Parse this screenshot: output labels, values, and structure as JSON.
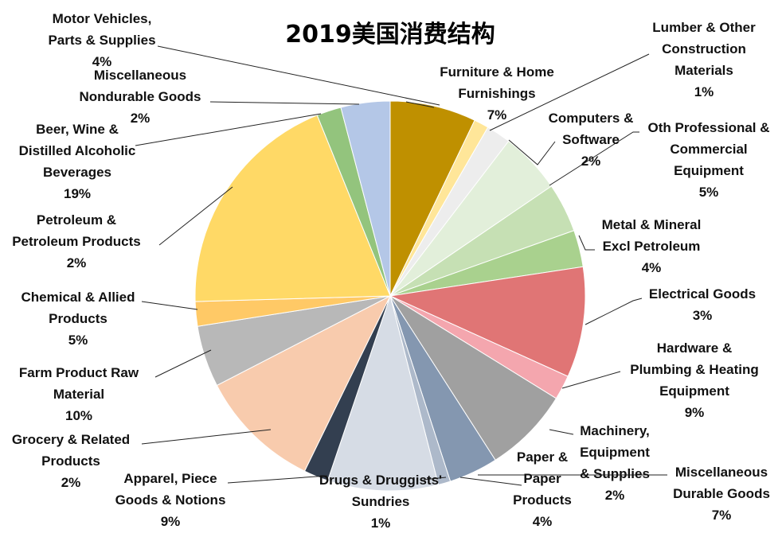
{
  "chart_data": {
    "type": "pie",
    "title": "2019美国消费结构",
    "start_angle_deg": 0,
    "direction": "clockwise",
    "slices": [
      {
        "lines": [
          "Furniture & Home",
          "Furnishings"
        ],
        "value": 7,
        "display": "7%",
        "color": "#BF9000"
      },
      {
        "lines": [
          "Lumber & Other",
          "Construction",
          "Materials"
        ],
        "value": 1.2,
        "display": "1%",
        "color": "#FFE699"
      },
      {
        "lines": [
          "Computers &",
          "Software"
        ],
        "value": 2,
        "display": "2%",
        "color": "#EDEDED"
      },
      {
        "lines": [
          "Oth Professional &",
          "Commercial",
          "Equipment"
        ],
        "value": 5,
        "display": "5%",
        "color": "#E2EFDA"
      },
      {
        "lines": [
          "Metal & Mineral",
          "Excl Petroleum"
        ],
        "value": 4,
        "display": "4%",
        "color": "#C6E0B4"
      },
      {
        "lines": [
          "Electrical Goods"
        ],
        "value": 3,
        "display": "3%",
        "color": "#A9D18E"
      },
      {
        "lines": [
          "Hardware &",
          "Plumbing & Heating",
          "Equipment"
        ],
        "value": 9,
        "display": "9%",
        "color": "#E07575"
      },
      {
        "lines": [
          "Machinery,",
          "Equipment",
          "& Supplies"
        ],
        "value": 2,
        "display": "2%",
        "color": "#F4A6AE"
      },
      {
        "lines": [
          "Miscellaneous",
          "Durable Goods"
        ],
        "value": 7,
        "display": "7%",
        "color": "#A0A0A0"
      },
      {
        "lines": [
          "Paper &",
          "Paper",
          "Products"
        ],
        "value": 4,
        "display": "4%",
        "color": "#8497B0"
      },
      {
        "lines": [
          "Drugs & Druggists'",
          "Sundries"
        ],
        "value": 1,
        "display": "1%",
        "color": "#ADB9CA"
      },
      {
        "lines": [
          "Apparel, Piece",
          "Goods & Notions"
        ],
        "value": 9,
        "display": "9%",
        "color": "#D6DCE5"
      },
      {
        "lines": [
          "Grocery & Related",
          "Products"
        ],
        "value": 2,
        "display": "2%",
        "color": "#333F50"
      },
      {
        "lines": [
          "Farm Product Raw",
          "Material"
        ],
        "value": 10,
        "display": "10%",
        "color": "#F8CBAD"
      },
      {
        "lines": [
          "Chemical & Allied",
          "Products"
        ],
        "value": 5,
        "display": "5%",
        "color": "#B8B8B8"
      },
      {
        "lines": [
          "Petroleum &",
          "Petroleum Products"
        ],
        "value": 2,
        "display": "2%",
        "color": "#FFC966"
      },
      {
        "lines": [
          "Beer, Wine &",
          "Distilled Alcoholic",
          "Beverages"
        ],
        "value": 19,
        "display": "19%",
        "color": "#FFD966"
      },
      {
        "lines": [
          "Miscellaneous",
          "Nondurable Goods"
        ],
        "value": 2,
        "display": "2%",
        "color": "#93C47D"
      },
      {
        "lines": [
          "Motor Vehicles,",
          "Parts & Supplies"
        ],
        "value": 4,
        "display": "4%",
        "color": "#B4C7E7"
      }
    ]
  }
}
